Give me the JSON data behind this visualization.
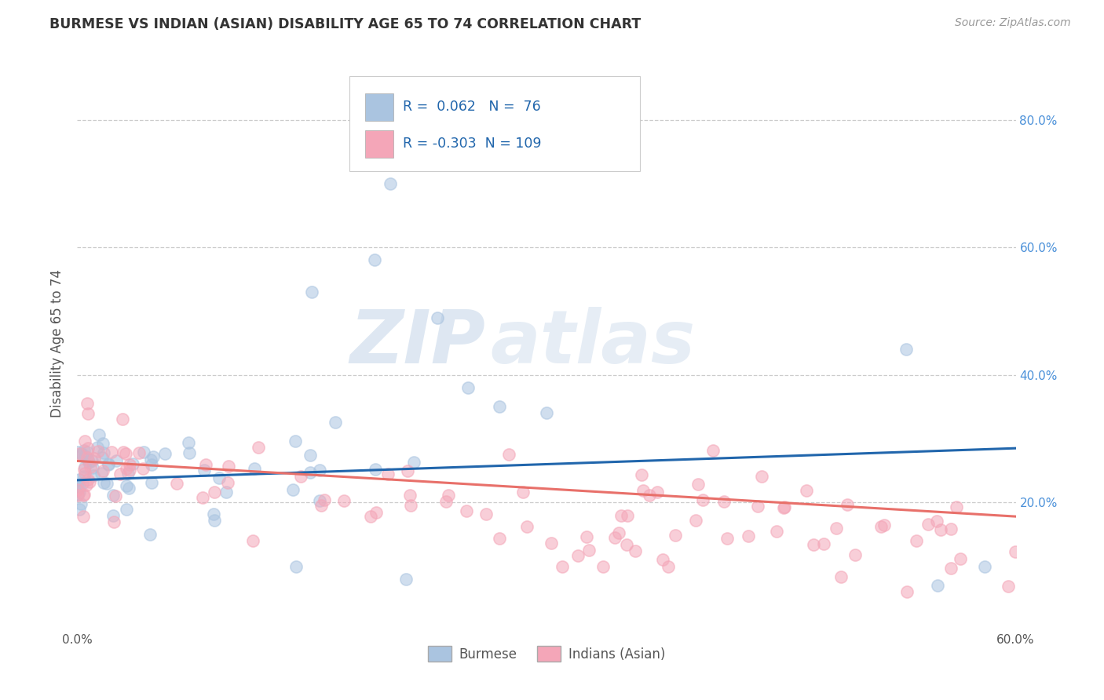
{
  "title": "BURMESE VS INDIAN (ASIAN) DISABILITY AGE 65 TO 74 CORRELATION CHART",
  "source": "Source: ZipAtlas.com",
  "ylabel": "Disability Age 65 to 74",
  "xlabel_burmese": "Burmese",
  "xlabel_indian": "Indians (Asian)",
  "xmin": 0.0,
  "xmax": 0.6,
  "ymin": 0.0,
  "ymax": 0.9,
  "yticks": [
    0.2,
    0.4,
    0.6,
    0.8
  ],
  "ytick_labels": [
    "20.0%",
    "40.0%",
    "60.0%",
    "80.0%"
  ],
  "xtick_positions": [
    0.0,
    0.1,
    0.2,
    0.3,
    0.4,
    0.5,
    0.6
  ],
  "xtick_labels": [
    "0.0%",
    "",
    "",
    "",
    "",
    "",
    "60.0%"
  ],
  "legend_R_burmese": "0.062",
  "legend_N_burmese": "76",
  "legend_R_indian": "-0.303",
  "legend_N_indian": "109",
  "burmese_color": "#aac4e0",
  "indian_color": "#f4a6b8",
  "burmese_line_color": "#2166ac",
  "indian_line_color": "#e8706a",
  "background_color": "#ffffff",
  "grid_color": "#cccccc",
  "watermark_zip": "ZIP",
  "watermark_atlas": "atlas",
  "burmese_line_start_y": 0.235,
  "burmese_line_end_y": 0.285,
  "indian_line_start_y": 0.265,
  "indian_line_end_y": 0.178,
  "burmese_scatter_seed": 11,
  "indian_scatter_seed": 22
}
